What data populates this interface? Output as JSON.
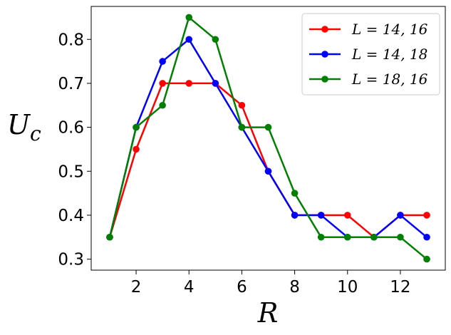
{
  "chart_data": {
    "type": "line",
    "xlabel": "R",
    "ylabel": "U_c",
    "xlim": [
      0.3,
      13.7
    ],
    "ylim": [
      0.275,
      0.875
    ],
    "xticks": [
      2,
      4,
      6,
      8,
      10,
      12
    ],
    "yticks": [
      0.3,
      0.4,
      0.5,
      0.6,
      0.7,
      0.8
    ],
    "xtick_labels": [
      "2",
      "4",
      "6",
      "8",
      "10",
      "12"
    ],
    "ytick_labels": [
      "0.3",
      "0.4",
      "0.5",
      "0.6",
      "0.7",
      "0.8"
    ],
    "legend_position": "top-right",
    "grid": false,
    "series": [
      {
        "name": "L = 14, 16",
        "color": "#ff0000",
        "x": [
          1,
          2,
          3,
          4,
          5,
          6,
          7,
          8,
          9,
          10,
          11,
          12,
          13
        ],
        "values": [
          0.35,
          0.55,
          0.7,
          0.7,
          0.7,
          0.65,
          0.5,
          0.4,
          0.4,
          0.4,
          0.35,
          0.4,
          0.4
        ]
      },
      {
        "name": "L = 14, 18",
        "color": "#0000ff",
        "x": [
          1,
          2,
          3,
          4,
          5,
          6,
          7,
          8,
          9,
          10,
          11,
          12,
          13
        ],
        "values": [
          0.35,
          0.6,
          0.75,
          0.8,
          0.7,
          0.6,
          0.5,
          0.4,
          0.4,
          0.35,
          0.35,
          0.4,
          0.35
        ]
      },
      {
        "name": "L = 18, 16",
        "color": "#008000",
        "x": [
          1,
          2,
          3,
          4,
          5,
          6,
          7,
          8,
          9,
          10,
          11,
          12,
          13
        ],
        "values": [
          0.35,
          0.6,
          0.65,
          0.85,
          0.8,
          0.6,
          0.6,
          0.45,
          0.35,
          0.35,
          0.35,
          0.35,
          0.3
        ]
      }
    ]
  }
}
